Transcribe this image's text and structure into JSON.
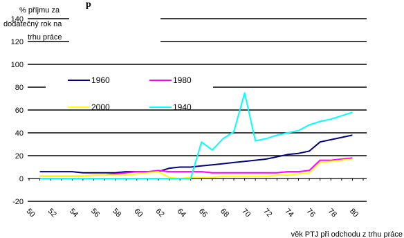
{
  "header_fragment": "p",
  "chart_data": {
    "type": "line",
    "ylabel": "% příjmu za dodatečný rok na trhu práce",
    "xlabel": "věk PTJ při odchodu z trhu práce",
    "ylim": [
      -20,
      140
    ],
    "xlim": [
      50,
      81
    ],
    "y_ticks": [
      "-20",
      "0",
      "20",
      "40",
      "60",
      "80",
      "100",
      "120",
      "140"
    ],
    "x_ticks": [
      "50",
      "52",
      "54",
      "56",
      "58",
      "60",
      "62",
      "64",
      "66",
      "68",
      "70",
      "72",
      "74",
      "76",
      "78",
      "80"
    ],
    "grid": "horizontal",
    "legend_placement": "inside-upper-left",
    "series": [
      {
        "name": "1960",
        "color": "#000080",
        "x": [
          51,
          52,
          53,
          54,
          55,
          56,
          57,
          58,
          59,
          60,
          61,
          62,
          63,
          64,
          65,
          66,
          67,
          68,
          69,
          70,
          71,
          72,
          73,
          74,
          75,
          76,
          77,
          78,
          79,
          80
        ],
        "y": [
          6,
          6,
          6,
          6,
          5,
          5,
          5,
          5,
          6,
          6,
          6,
          6,
          9,
          10,
          10,
          11,
          12,
          13,
          14,
          15,
          16,
          17,
          19,
          21,
          22,
          24,
          32,
          34,
          36,
          38
        ]
      },
      {
        "name": "1980",
        "color": "#FF00FF",
        "x": [
          51,
          52,
          53,
          54,
          55,
          56,
          57,
          58,
          59,
          60,
          61,
          62,
          63,
          64,
          65,
          66,
          67,
          68,
          69,
          70,
          71,
          72,
          73,
          74,
          75,
          76,
          77,
          78,
          79,
          80
        ],
        "y": [
          2,
          2,
          2,
          2,
          2,
          3,
          3,
          4,
          5,
          6,
          6,
          7,
          6,
          6,
          6,
          6,
          5,
          5,
          5,
          5,
          5,
          5,
          5,
          6,
          6,
          7,
          16,
          16,
          17,
          18
        ]
      },
      {
        "name": "2000",
        "color": "#FFFF00",
        "x": [
          51,
          52,
          53,
          54,
          55,
          56,
          57,
          58,
          59,
          60,
          61,
          62,
          63,
          64,
          65,
          66,
          67,
          68,
          69,
          70,
          71,
          72,
          73,
          74,
          75,
          76,
          77,
          78,
          79,
          80
        ],
        "y": [
          2,
          2,
          2,
          2,
          2,
          3,
          3,
          3,
          3,
          4,
          5,
          6,
          1,
          0,
          1,
          1,
          1,
          2,
          2,
          2,
          2,
          2,
          3,
          3,
          4,
          5,
          14,
          15,
          16,
          17
        ]
      },
      {
        "name": "1940",
        "color": "#00FFFF",
        "x": [
          51,
          52,
          53,
          54,
          55,
          56,
          57,
          58,
          59,
          60,
          61,
          62,
          63,
          64,
          65,
          66,
          67,
          68,
          69,
          70,
          71,
          72,
          73,
          74,
          75,
          76,
          77,
          78,
          79,
          80
        ],
        "y": [
          0,
          0,
          0,
          0,
          0,
          0,
          0,
          0,
          0,
          0,
          0,
          0,
          0,
          0,
          0,
          32,
          25,
          35,
          41,
          75,
          33,
          35,
          38,
          40,
          42,
          47,
          50,
          52,
          55,
          58
        ]
      }
    ]
  }
}
